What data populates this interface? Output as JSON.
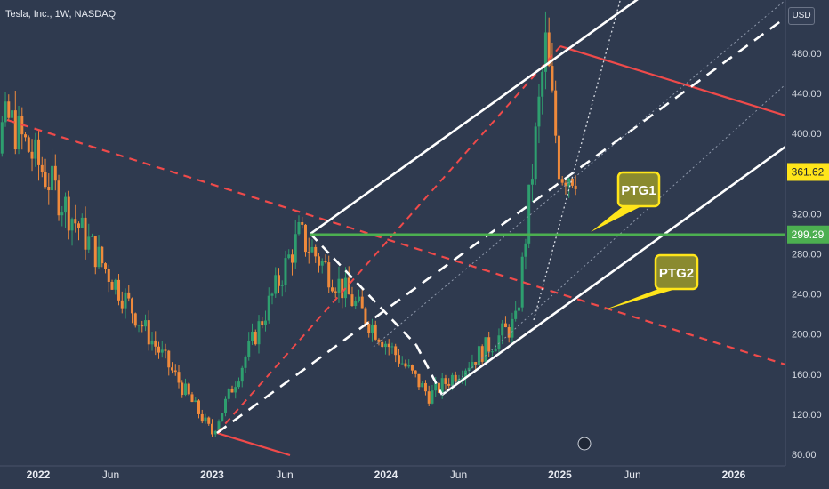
{
  "header": {
    "title": "Tesla, Inc., 1W, NASDAQ",
    "currency": "USD"
  },
  "colors": {
    "background": "#2f3a4f",
    "up_candle": "#2e9f6f",
    "down_candle": "#ef8a3c",
    "channel": "#ffffff",
    "trend_red": "#ef4a4a",
    "support_green": "#4caf50",
    "last_price_tag": "#ffe51a",
    "ptg_fill": "#8a8a2f",
    "ptg_border": "#ffe51a"
  },
  "chart_data": {
    "type": "candlestick",
    "timeframe": "1W",
    "x_ticks": [
      "2022",
      "Jun",
      "2023",
      "Jun",
      "2024",
      "Jun",
      "2025",
      "Jun",
      "2026"
    ],
    "y_ticks": [
      "80.00",
      "120.00",
      "160.00",
      "200.00",
      "240.00",
      "280.00",
      "320.00",
      "400.00",
      "440.00",
      "480.00"
    ],
    "ylim": [
      80,
      530
    ],
    "price_tags": [
      {
        "label": "361.62",
        "value": 361.62,
        "kind": "last-price"
      },
      {
        "label": "299.29",
        "value": 299.29,
        "kind": "horizontal-level"
      }
    ],
    "annotations": [
      {
        "label": "PTG1",
        "target_price": 299
      },
      {
        "label": "PTG2",
        "target_price": 232
      }
    ],
    "key_swings": [
      {
        "date": "2021-11",
        "price": 414
      },
      {
        "date": "2023-01",
        "price": 101
      },
      {
        "date": "2023-07",
        "price": 299
      },
      {
        "date": "2024-04",
        "price": 138
      },
      {
        "date": "2024-10",
        "price": 212
      },
      {
        "date": "2024-12",
        "price": 488
      },
      {
        "date": "2025-01",
        "price": 362
      }
    ]
  }
}
